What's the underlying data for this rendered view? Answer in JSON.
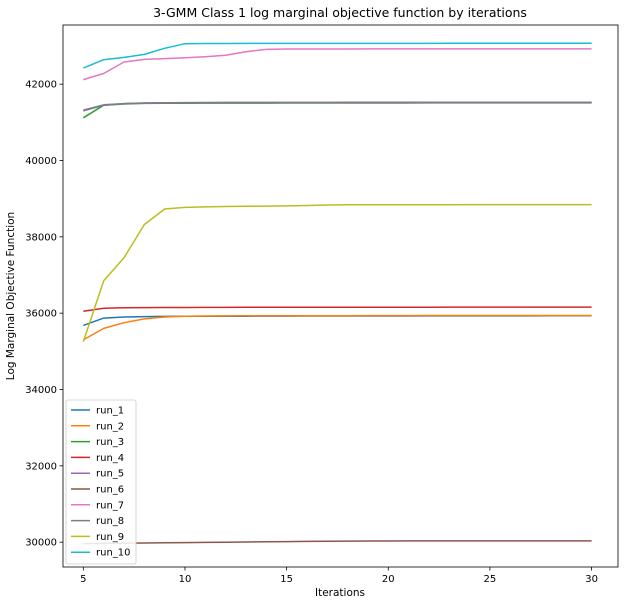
{
  "chart_data": {
    "type": "line",
    "title": "3-GMM Class 1 log marginal objective function by iterations",
    "xlabel": "Iterations",
    "ylabel": "Log Marginal Objective Function",
    "xlim": [
      4.0,
      31.3
    ],
    "ylim": [
      29350,
      43550
    ],
    "xticks": [
      5,
      10,
      15,
      20,
      25,
      30
    ],
    "yticks": [
      30000,
      32000,
      34000,
      36000,
      38000,
      40000,
      42000
    ],
    "grid": false,
    "legend_position": "lower-left",
    "x": [
      5,
      6,
      7,
      8,
      9,
      10,
      11,
      12,
      13,
      14,
      15,
      16,
      17,
      18,
      19,
      20,
      21,
      22,
      23,
      24,
      25,
      26,
      27,
      28,
      29,
      30
    ],
    "series": [
      {
        "name": "run_1",
        "color": "#1f77b4",
        "values": [
          35680,
          35870,
          35900,
          35910,
          35915,
          35918,
          35920,
          35921,
          35922,
          35923,
          35924,
          35925,
          35925,
          35926,
          35926,
          35927,
          35927,
          35928,
          35928,
          35928,
          35929,
          35929,
          35929,
          35930,
          35930,
          35930
        ]
      },
      {
        "name": "run_2",
        "color": "#ff7f0e",
        "values": [
          35300,
          35600,
          35750,
          35850,
          35900,
          35920,
          35925,
          35928,
          35930,
          35931,
          35932,
          35933,
          35934,
          35935,
          35936,
          35937,
          35937,
          35938,
          35938,
          35939,
          35939,
          35940,
          35940,
          35940,
          35940,
          35940
        ]
      },
      {
        "name": "run_3",
        "color": "#2ca02c",
        "values": [
          41120,
          41450,
          41480,
          41495,
          41500,
          41502,
          41503,
          41504,
          41505,
          41505,
          41506,
          41506,
          41506,
          41507,
          41507,
          41507,
          41507,
          41508,
          41508,
          41508,
          41508,
          41508,
          41508,
          41508,
          41508,
          41508
        ]
      },
      {
        "name": "run_4",
        "color": "#d62728",
        "values": [
          36050,
          36130,
          36140,
          36145,
          36148,
          36150,
          36151,
          36152,
          36153,
          36153,
          36154,
          36154,
          36155,
          36155,
          36156,
          36156,
          36157,
          36157,
          36158,
          36158,
          36159,
          36159,
          36160,
          36160,
          36160,
          36160
        ]
      },
      {
        "name": "run_5",
        "color": "#9467bd",
        "values": [
          41300,
          41450,
          41490,
          41510,
          41515,
          41518,
          41520,
          41521,
          41522,
          41522,
          41523,
          41523,
          41523,
          41524,
          41524,
          41524,
          41524,
          41524,
          41525,
          41525,
          41525,
          41525,
          41525,
          41525,
          41525,
          41525
        ]
      },
      {
        "name": "run_6",
        "color": "#8c564b",
        "values": [
          29960,
          29970,
          29975,
          29980,
          29985,
          29990,
          29995,
          30000,
          30005,
          30010,
          30015,
          30020,
          30025,
          30028,
          30030,
          30032,
          30033,
          30034,
          30035,
          30035,
          30035,
          30035,
          30035,
          30035,
          30035,
          30035
        ]
      },
      {
        "name": "run_7",
        "color": "#e377c2",
        "values": [
          42120,
          42280,
          42580,
          42650,
          42670,
          42690,
          42720,
          42760,
          42850,
          42910,
          42920,
          42921,
          42922,
          42922,
          42923,
          42923,
          42924,
          42924,
          42924,
          42925,
          42925,
          42925,
          42925,
          42925,
          42925,
          42925
        ]
      },
      {
        "name": "run_8",
        "color": "#7f7f7f",
        "values": [
          41320,
          41460,
          41490,
          41500,
          41505,
          41508,
          41510,
          41511,
          41512,
          41512,
          41513,
          41513,
          41513,
          41514,
          41514,
          41514,
          41514,
          41514,
          41515,
          41515,
          41515,
          41515,
          41515,
          41515,
          41515,
          41515
        ]
      },
      {
        "name": "run_9",
        "color": "#bcbd22",
        "values": [
          35250,
          36850,
          37450,
          38320,
          38730,
          38770,
          38785,
          38795,
          38800,
          38805,
          38810,
          38820,
          38835,
          38840,
          38840,
          38841,
          38842,
          38843,
          38843,
          38844,
          38844,
          38844,
          38845,
          38845,
          38845,
          38845
        ]
      },
      {
        "name": "run_10",
        "color": "#17becf",
        "values": [
          42420,
          42640,
          42700,
          42780,
          42940,
          43060,
          43065,
          43066,
          43067,
          43067,
          43068,
          43068,
          43068,
          43069,
          43069,
          43069,
          43069,
          43069,
          43070,
          43070,
          43070,
          43070,
          43070,
          43070,
          43070,
          43070
        ]
      }
    ]
  }
}
